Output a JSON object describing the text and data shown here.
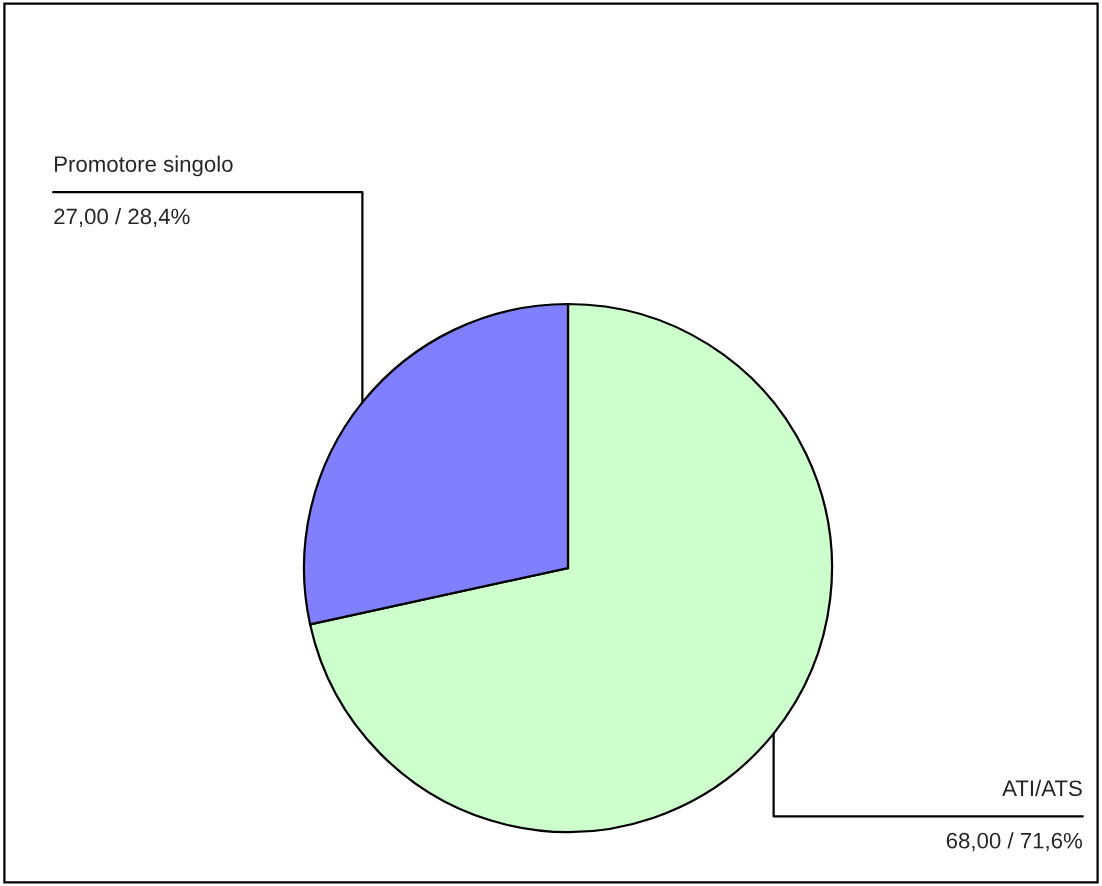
{
  "chart_data": {
    "type": "pie",
    "categories": [
      "ATI/ATS",
      "Promotore singolo"
    ],
    "values": [
      68,
      27
    ],
    "value_labels": [
      "68,00 / 71,6%",
      "27,00 / 28,4%"
    ],
    "colors": [
      "#ccffcc",
      "#8080ff"
    ],
    "legend": false
  }
}
